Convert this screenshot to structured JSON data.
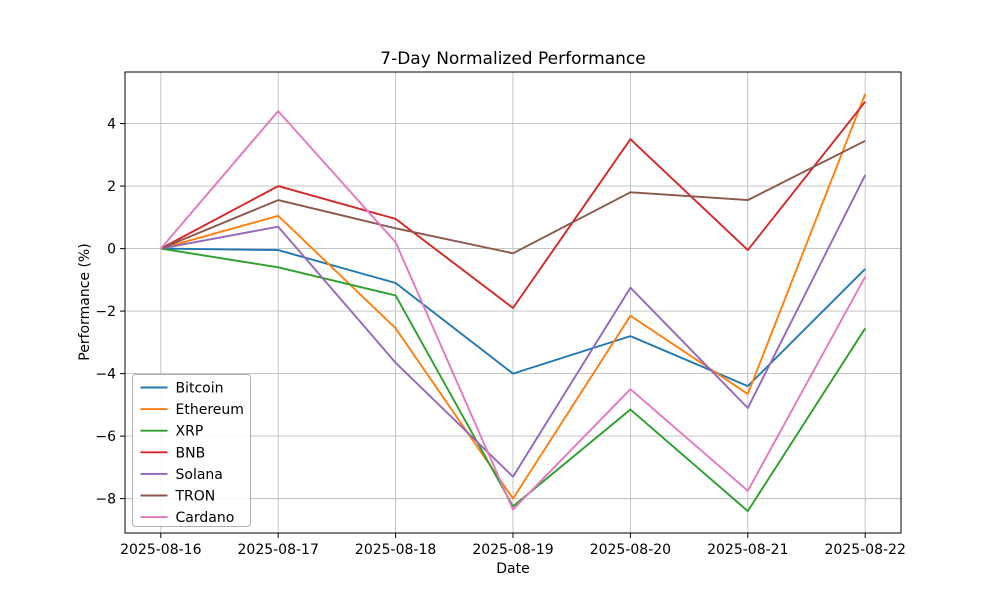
{
  "figure": {
    "title": "7-Day Normalized Performance",
    "xlabel": "Date",
    "ylabel": "Performance (%)"
  },
  "chart_data": {
    "type": "line",
    "title": "7-Day Normalized Performance",
    "xlabel": "Date",
    "ylabel": "Performance (%)",
    "grid": true,
    "legend_position": "lower-left",
    "categories": [
      "2025-08-16",
      "2025-08-17",
      "2025-08-18",
      "2025-08-19",
      "2025-08-20",
      "2025-08-21",
      "2025-08-22"
    ],
    "y_ticks": [
      4,
      2,
      0,
      -2,
      -4,
      -6,
      -8
    ],
    "ylim": [
      -9.1,
      5.65
    ],
    "series": [
      {
        "name": "Bitcoin",
        "color": "#1f77b4",
        "values": [
          0,
          -0.05,
          -1.1,
          -4.0,
          -2.8,
          -4.4,
          -0.65
        ]
      },
      {
        "name": "Ethereum",
        "color": "#ff7f0e",
        "values": [
          0,
          1.05,
          -2.55,
          -8.0,
          -2.15,
          -4.65,
          4.95
        ]
      },
      {
        "name": "XRP",
        "color": "#2ca02c",
        "values": [
          0,
          -0.6,
          -1.5,
          -8.25,
          -5.15,
          -8.4,
          -2.55
        ]
      },
      {
        "name": "BNB",
        "color": "#d62728",
        "values": [
          0,
          2.0,
          0.95,
          -1.9,
          3.5,
          -0.05,
          4.7
        ]
      },
      {
        "name": "Solana",
        "color": "#9467bd",
        "values": [
          0,
          0.7,
          -3.65,
          -7.3,
          -1.25,
          -5.1,
          2.35
        ]
      },
      {
        "name": "TRON",
        "color": "#8c564b",
        "values": [
          0,
          1.55,
          0.65,
          -0.15,
          1.8,
          1.55,
          3.45
        ]
      },
      {
        "name": "Cardano",
        "color": "#e377c2",
        "values": [
          0,
          4.4,
          0.2,
          -8.35,
          -4.5,
          -7.75,
          -0.9
        ]
      }
    ]
  }
}
